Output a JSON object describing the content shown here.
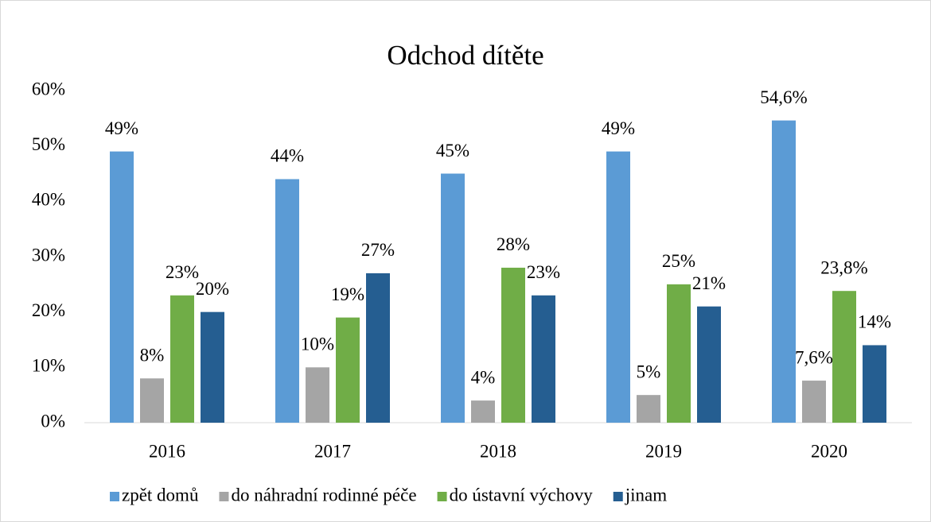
{
  "chart_data": {
    "type": "bar",
    "title": "Odchod dítěte",
    "categories": [
      "2016",
      "2017",
      "2018",
      "2019",
      "2020"
    ],
    "series": [
      {
        "name": "zpět domů",
        "color": "#5b9bd5",
        "values": [
          49,
          44,
          45,
          49,
          54.6
        ],
        "value_labels": [
          "49%",
          "44%",
          "45%",
          "49%",
          "54,6%"
        ]
      },
      {
        "name": "do náhradní rodinné péče",
        "color": "#a5a5a5",
        "values": [
          8,
          10,
          4,
          5,
          7.6
        ],
        "value_labels": [
          "8%",
          "10%",
          "4%",
          "5%",
          "7,6%"
        ]
      },
      {
        "name": "do ústavní výchovy",
        "color": "#70ad47",
        "values": [
          23,
          19,
          28,
          25,
          23.8
        ],
        "value_labels": [
          "23%",
          "19%",
          "28%",
          "25%",
          "23,8%"
        ]
      },
      {
        "name": "jinam",
        "color": "#255e91",
        "values": [
          20,
          27,
          23,
          21,
          14
        ],
        "value_labels": [
          "20%",
          "27%",
          "23%",
          "21%",
          "14%"
        ]
      }
    ],
    "ylim": [
      0,
      60
    ],
    "yticks": [
      {
        "value": 0,
        "label": "0%"
      },
      {
        "value": 10,
        "label": "10%"
      },
      {
        "value": 20,
        "label": "20%"
      },
      {
        "value": 30,
        "label": "30%"
      },
      {
        "value": 40,
        "label": "40%"
      },
      {
        "value": 50,
        "label": "50%"
      },
      {
        "value": 60,
        "label": "60%"
      }
    ],
    "grid": false,
    "legend": "bottom"
  }
}
